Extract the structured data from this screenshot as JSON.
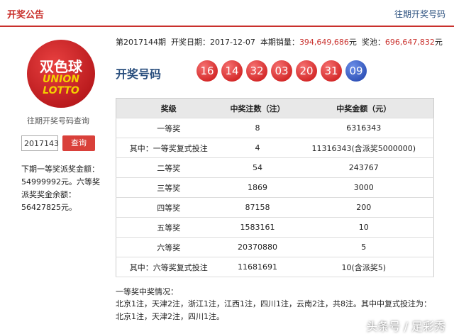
{
  "header": {
    "title": "开奖公告",
    "link": "往期开奖号码"
  },
  "sidebar": {
    "logo": {
      "cn": "双色球",
      "line1": "UNION",
      "line2": "LOTTO"
    },
    "query_label": "往期开奖号码查询",
    "input_value": "2017143",
    "button": "查询",
    "note": "下期一等奖派奖金额：54999992元。六等奖派奖奖金余额：56427825元。"
  },
  "info": {
    "issue": "第2017144期",
    "date_label": "开奖日期：",
    "date": "2017-12-07",
    "sales_label": "本期销量：",
    "sales": "394,649,686",
    "sales_unit": "元",
    "pool_label": "奖池：",
    "pool": "696,647,832",
    "pool_unit": "元"
  },
  "draw": {
    "label": "开奖号码",
    "red_balls": [
      "16",
      "14",
      "32",
      "03",
      "20",
      "31"
    ],
    "blue_balls": [
      "09"
    ]
  },
  "table": {
    "headers": [
      "奖级",
      "中奖注数（注）",
      "中奖金额（元）"
    ],
    "rows": [
      [
        "一等奖",
        "8",
        "6316343"
      ],
      [
        "其中：一等奖复式投注",
        "4",
        "11316343(含派奖5000000)"
      ],
      [
        "二等奖",
        "54",
        "243767"
      ],
      [
        "三等奖",
        "1869",
        "3000"
      ],
      [
        "四等奖",
        "87158",
        "200"
      ],
      [
        "五等奖",
        "1583161",
        "10"
      ],
      [
        "六等奖",
        "20370880",
        "5"
      ],
      [
        "其中：六等奖复式投注",
        "11681691",
        "10(含派奖5)"
      ]
    ]
  },
  "footer": {
    "title": "一等奖中奖情况：",
    "text": "北京1注，天津2注，浙江1注，江西1注，四川1注，云南2注，共8注。其中中复式投注为：北京1注，天津2注，四川1注。"
  },
  "watermark": "头条号 / 足彩秀"
}
